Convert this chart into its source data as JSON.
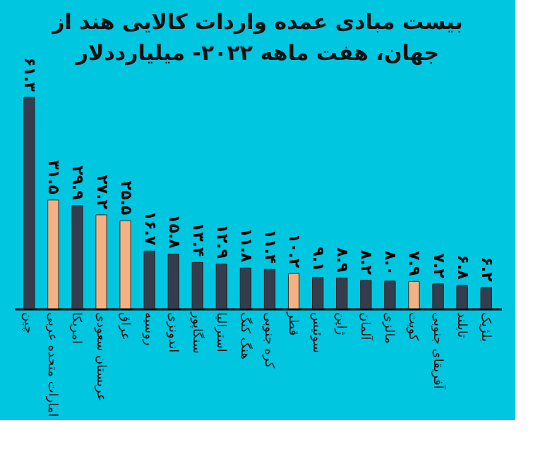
{
  "chart_data": {
    "type": "bar",
    "title": "بیست مبادی عمده واردات کالایی هند از\nجهان، هفت ماهه ۲۰۲۲- میلیارددلار",
    "categories": [
      "چین",
      "امارات متحده عربی",
      "امریکا",
      "عربستان سعودی",
      "عراق",
      "روسیه",
      "اندونزی",
      "سنگاپور",
      "استرالیا",
      "هنگ کنگ",
      "کره جنوبی",
      "قطر",
      "سوئیس",
      "ژاپن",
      "آلمان",
      "مالزی",
      "کویت",
      "آفریقای جنوبی",
      "تایلند",
      "بلژیک"
    ],
    "values": [
      61.3,
      31.5,
      29.9,
      27.2,
      25.5,
      16.7,
      15.8,
      13.4,
      12.9,
      11.8,
      11.4,
      10.2,
      9.1,
      8.9,
      8.2,
      8.0,
      7.9,
      7.2,
      6.8,
      6.2
    ],
    "value_labels": [
      "۶۱.۳",
      "۳۱.۵",
      "۲۹.۹",
      "۲۷.۲",
      "۲۵.۵",
      "۱۶.۷",
      "۱۵.۸",
      "۱۳.۴",
      "۱۲.۹",
      "۱۱.۸",
      "۱۱.۴",
      "۱۰.۲",
      "۹.۱",
      "۸.۹",
      "۸.۲",
      "۸.۰",
      "۷.۹",
      "۷.۲",
      "۶.۸",
      "۶.۲"
    ],
    "colors": [
      "#333d4d",
      "#f4b183",
      "#333d4d",
      "#f4b183",
      "#f4b183",
      "#333d4d",
      "#333d4d",
      "#333d4d",
      "#333d4d",
      "#333d4d",
      "#333d4d",
      "#f4b183",
      "#333d4d",
      "#333d4d",
      "#333d4d",
      "#333d4d",
      "#f4b183",
      "#333d4d",
      "#333d4d",
      "#333d4d"
    ],
    "grid": false
  }
}
